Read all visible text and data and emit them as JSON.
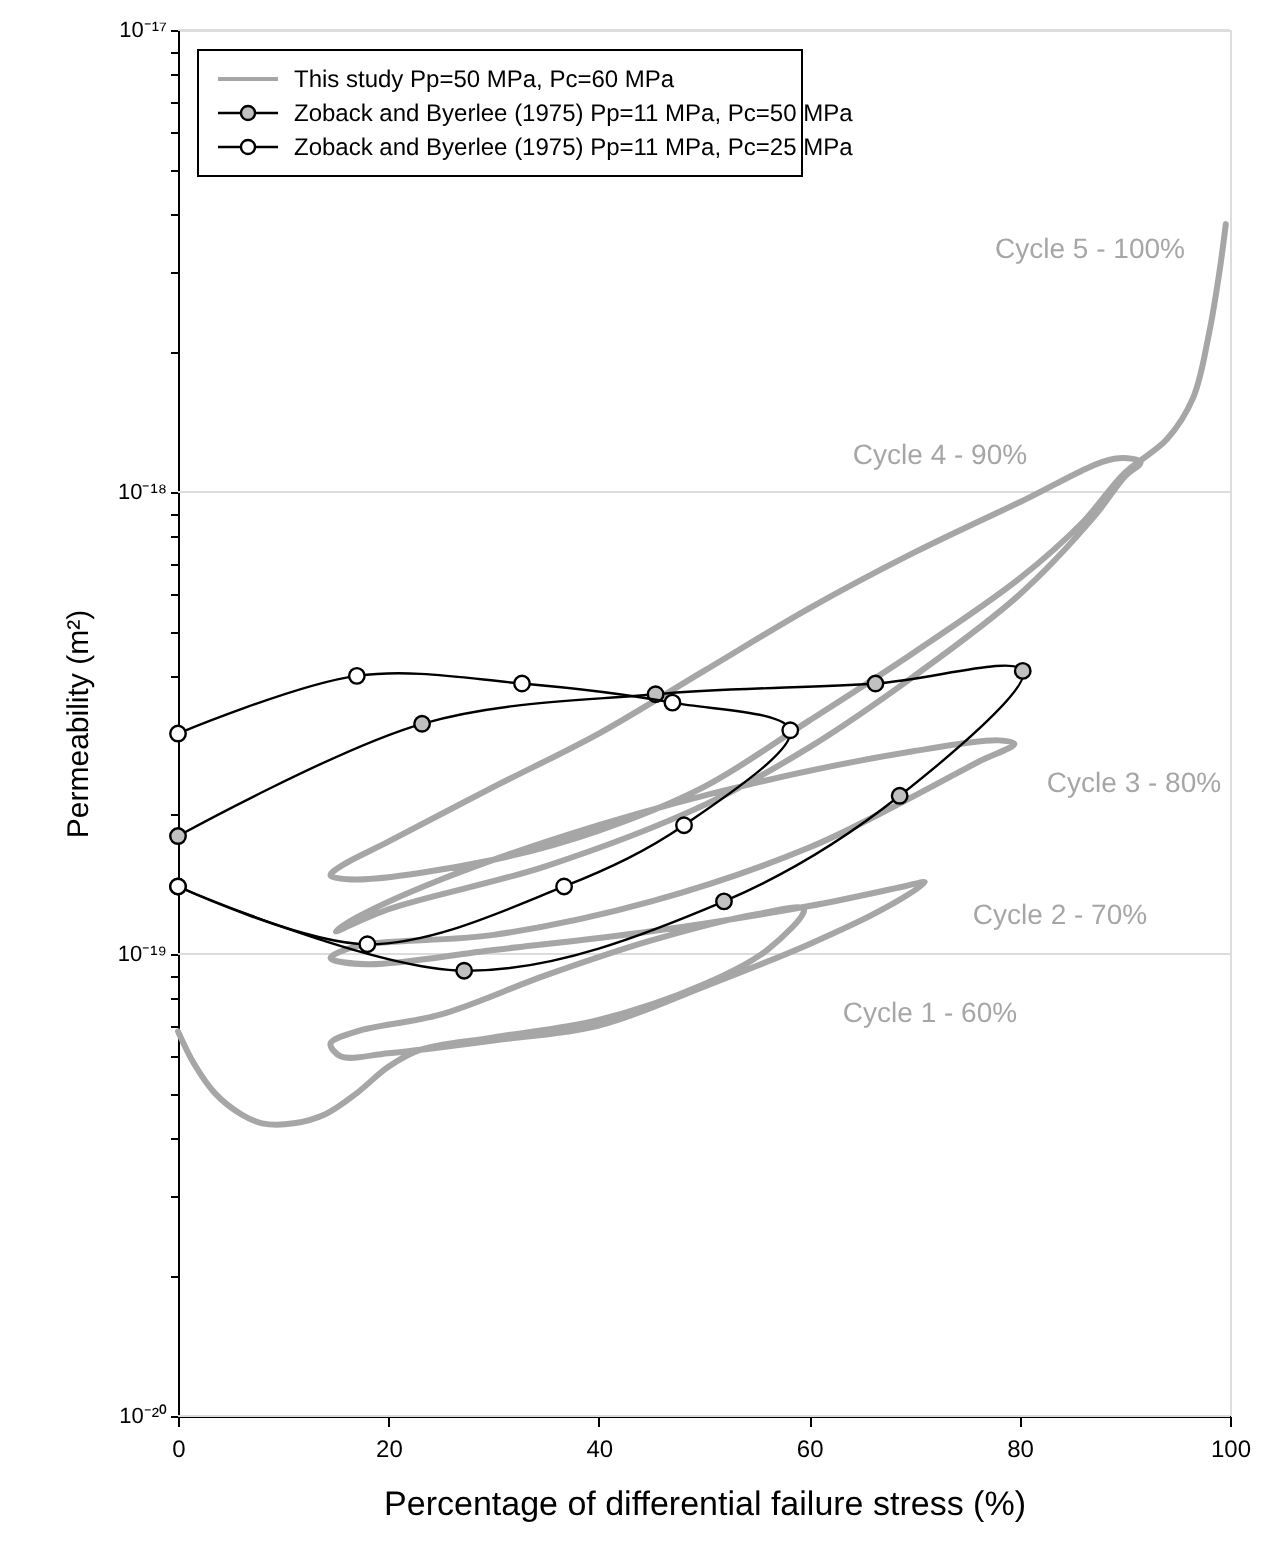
{
  "chart_data": {
    "type": "line",
    "xlabel": "Percentage of differential failure stress (%)",
    "ylabel": "Permeability (m²)",
    "log": "y",
    "grid": "y",
    "legend": "top left",
    "xlim": [
      0,
      100
    ],
    "xticks": [
      0,
      20,
      40,
      60,
      80,
      100
    ],
    "ylim": [
      1e-20,
      1e-17
    ],
    "yticks": [
      {
        "value": 1e-20,
        "label": "10⁻²⁰"
      },
      {
        "value": 2e-20,
        "label": null
      },
      {
        "value": 3e-20,
        "label": null
      },
      {
        "value": 4e-20,
        "label": null
      },
      {
        "value": 5e-20,
        "label": null
      },
      {
        "value": 6e-20,
        "label": null
      },
      {
        "value": 7e-20,
        "label": null
      },
      {
        "value": 8e-20,
        "label": null
      },
      {
        "value": 9e-20,
        "label": null
      },
      {
        "value": 1e-19,
        "label": "10⁻¹⁹"
      },
      {
        "value": 2e-19,
        "label": null
      },
      {
        "value": 3e-19,
        "label": null
      },
      {
        "value": 4e-19,
        "label": null
      },
      {
        "value": 5e-19,
        "label": null
      },
      {
        "value": 6e-19,
        "label": null
      },
      {
        "value": 7e-19,
        "label": null
      },
      {
        "value": 8e-19,
        "label": null
      },
      {
        "value": 9e-19,
        "label": null
      },
      {
        "value": 1e-18,
        "label": "10⁻¹⁸"
      },
      {
        "value": 2e-18,
        "label": null
      },
      {
        "value": 3e-18,
        "label": null
      },
      {
        "value": 4e-18,
        "label": null
      },
      {
        "value": 5e-18,
        "label": null
      },
      {
        "value": 6e-18,
        "label": null
      },
      {
        "value": 7e-18,
        "label": null
      },
      {
        "value": 8e-18,
        "label": null
      },
      {
        "value": 9e-18,
        "label": null
      },
      {
        "value": 1e-17,
        "label": "10⁻¹⁷"
      }
    ],
    "series": [
      {
        "name": "This study Pp=50 MPa, Pc=60 MPa",
        "color": "#a6a6a6",
        "marker": "none",
        "line_style": "solid",
        "x": [
          0,
          1.5,
          3.5,
          6,
          8,
          11,
          14,
          17,
          20,
          23,
          30,
          40,
          50,
          56,
          59.5,
          55,
          45,
          35,
          25,
          17,
          14.5,
          15.5,
          20,
          30,
          40,
          50,
          60,
          67,
          71,
          69,
          60,
          45,
          30,
          18,
          14.5,
          17,
          30,
          45,
          60,
          70,
          76,
          79.5,
          78,
          70,
          55,
          40,
          25,
          17,
          15,
          20,
          35,
          50,
          60,
          70,
          80,
          87,
          90,
          91.5,
          89,
          80,
          70,
          60,
          50,
          40,
          30,
          20,
          15.5,
          14.5,
          17,
          30,
          40,
          50,
          60,
          70,
          80,
          86,
          90,
          94,
          96.5,
          98,
          99,
          99.6
        ],
        "values": [
          6.8e-20,
          5.8e-20,
          5e-20,
          4.5e-20,
          4.3e-20,
          4.3e-20,
          4.5e-20,
          5e-20,
          5.7e-20,
          6.2e-20,
          6.6e-20,
          7.2e-20,
          8.6e-20,
          1.02e-19,
          1.25e-19,
          1.22e-19,
          1.07e-19,
          9e-20,
          7.4e-20,
          6.8e-20,
          6.4e-20,
          6e-20,
          6.1e-20,
          6.5e-20,
          7e-20,
          8.5e-20,
          1.05e-19,
          1.25e-19,
          1.43e-19,
          1.4e-19,
          1.27e-19,
          1.12e-19,
          1.02e-19,
          9.5e-20,
          9.8e-20,
          1.04e-19,
          1.1e-19,
          1.3e-19,
          1.7e-19,
          2.2e-19,
          2.6e-19,
          2.85e-19,
          2.9e-19,
          2.75e-19,
          2.35e-19,
          1.9e-19,
          1.45e-19,
          1.2e-19,
          1.12e-19,
          1.25e-19,
          1.55e-19,
          2.1e-19,
          2.8e-19,
          4e-19,
          6e-19,
          8.8e-19,
          1.08e-18,
          1.16e-18,
          1.18e-18,
          9.5e-19,
          7.4e-19,
          5.6e-19,
          4.1e-19,
          3e-19,
          2.3e-19,
          1.75e-19,
          1.55e-19,
          1.48e-19,
          1.45e-19,
          1.6e-19,
          1.85e-19,
          2.3e-19,
          3.2e-19,
          4.5e-19,
          6.5e-19,
          8.6e-19,
          1.1e-18,
          1.3e-18,
          1.6e-18,
          2.2e-18,
          3e-18,
          3.8e-18
        ]
      },
      {
        "name": "Zoback and Byerlee (1975) Pp=11 MPa, Pc=50 MPa",
        "color": "#000000",
        "marker": "circle",
        "line_style": "solid",
        "x": [
          0,
          23.2,
          45.4,
          66.3,
          80.3,
          68.6,
          51.9,
          27.2,
          0
        ],
        "values": [
          1.8e-19,
          3.15e-19,
          3.65e-19,
          3.85e-19,
          4.1e-19,
          2.2e-19,
          1.3e-19,
          9.2e-20,
          1.4e-19
        ]
      },
      {
        "name": "Zoback and Byerlee (1975) Pp=11 MPa, Pc=25 MPa",
        "color": "#000000",
        "marker": "circle",
        "line_style": "solid",
        "x": [
          0,
          17,
          32.7,
          47,
          58.2,
          48.1,
          36.7,
          18,
          0
        ],
        "values": [
          3e-19,
          4e-19,
          3.85e-19,
          3.5e-19,
          3.05e-19,
          1.9e-19,
          1.4e-19,
          1.05e-19,
          1.4e-19
        ]
      }
    ],
    "annotations": [
      "Cycle 5 - 100%",
      "Cycle 4 - 90%",
      "Cycle 3 - 80%",
      "Cycle 2 - 70%",
      "Cycle 1 - 60%"
    ]
  }
}
